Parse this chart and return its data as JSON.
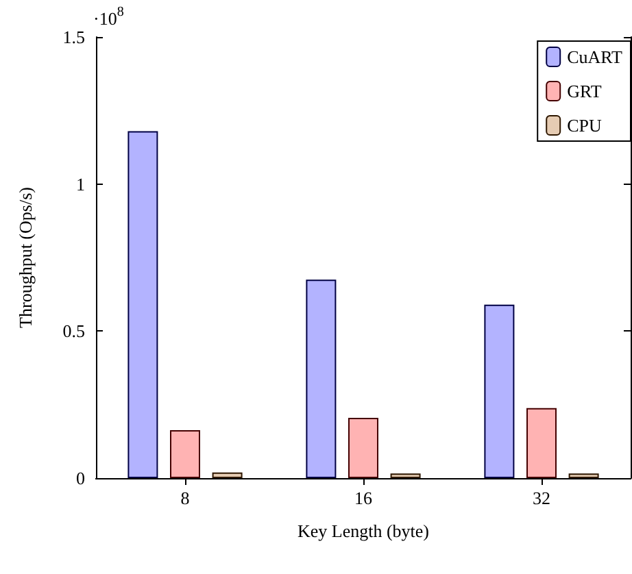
{
  "chart_data": {
    "type": "bar",
    "xlabel": "Key Length (byte)",
    "ylabel": "Throughput (Ops/s)",
    "annotations": [
      "·10$^{8}$"
    ],
    "categories": [
      "8",
      "16",
      "32"
    ],
    "series": [
      {
        "name": "CuART",
        "color": "#b3b3ff",
        "values": [
          1.18,
          0.675,
          0.59
        ]
      },
      {
        "name": "GRT",
        "color": "#ffb3b3",
        "values": [
          0.163,
          0.205,
          0.238
        ]
      },
      {
        "name": "CPU",
        "color": "#e6ccb3",
        "values": [
          0.019,
          0.016,
          0.016
        ]
      }
    ],
    "ylim": [
      0,
      1.5
    ],
    "yticks": [
      0,
      0.5,
      1,
      1.5
    ],
    "grid": false,
    "legend": "top right"
  }
}
